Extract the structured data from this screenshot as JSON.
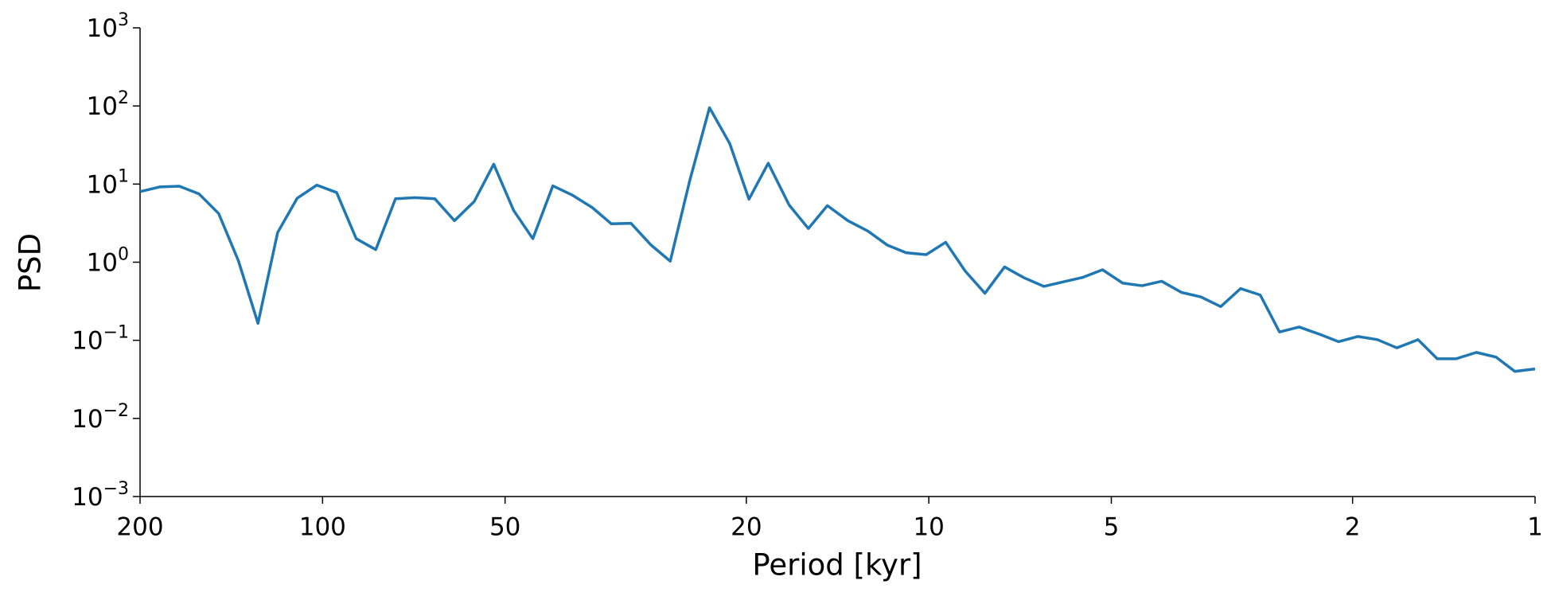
{
  "chart_data": {
    "type": "line",
    "xlabel": "Period [kyr]",
    "ylabel": "PSD",
    "xscale": "log",
    "yscale": "log",
    "xlim": [
      200,
      1
    ],
    "ylim": [
      0.001,
      1000
    ],
    "xticks": [
      200,
      100,
      50,
      20,
      10,
      5,
      2,
      1
    ],
    "yticks": [
      {
        "value": 0.001,
        "label": "10",
        "exponent": "−3"
      },
      {
        "value": 0.01,
        "label": "10",
        "exponent": "−2"
      },
      {
        "value": 0.1,
        "label": "10",
        "exponent": "−1"
      },
      {
        "value": 1,
        "label": "10",
        "exponent": "0"
      },
      {
        "value": 10,
        "label": "10",
        "exponent": "1"
      },
      {
        "value": 100,
        "label": "10",
        "exponent": "2"
      },
      {
        "value": 1000,
        "label": "10",
        "exponent": "3"
      }
    ],
    "x": [
      200,
      185.6,
      172.3,
      159.9,
      148.4,
      137.7,
      127.8,
      118.6,
      110.1,
      102.2,
      94.8,
      88.0,
      81.7,
      75.8,
      70.4,
      65.3,
      60.6,
      56.2,
      52.2,
      48.4,
      45.0,
      41.7,
      38.7,
      35.9,
      33.4,
      31.0,
      28.7,
      26.7,
      24.8,
      23.0,
      21.3,
      19.8,
      18.4,
      17.0,
      15.8,
      14.7,
      13.6,
      12.6,
      11.7,
      10.9,
      10.1,
      9.38,
      8.71,
      8.08,
      7.5,
      6.96,
      6.46,
      6.0,
      5.57,
      5.17,
      4.79,
      4.45,
      4.13,
      3.83,
      3.56,
      3.3,
      3.06,
      2.84,
      2.64,
      2.45,
      2.27,
      2.11,
      1.96,
      1.82,
      1.69,
      1.56,
      1.45,
      1.35,
      1.25,
      1.16,
      1.08,
      1
    ],
    "series": [
      {
        "color": "#1f77b4",
        "values": [
          8,
          9.2,
          9.4,
          7.5,
          4.2,
          1.05,
          0.165,
          2.4,
          6.6,
          9.7,
          7.8,
          2.0,
          1.45,
          6.5,
          6.7,
          6.5,
          3.4,
          6.0,
          18,
          4.6,
          2.0,
          9.5,
          7.2,
          5.0,
          3.1,
          3.15,
          1.65,
          1.03,
          11,
          95,
          33,
          6.4,
          18.5,
          5.4,
          2.7,
          5.3,
          3.4,
          2.5,
          1.65,
          1.32,
          1.25,
          1.8,
          0.77,
          0.4,
          0.87,
          0.63,
          0.49,
          0.56,
          0.64,
          0.8,
          0.54,
          0.5,
          0.57,
          0.41,
          0.36,
          0.27,
          0.46,
          0.38,
          0.128,
          0.148,
          0.12,
          0.096,
          0.112,
          0.102,
          0.08,
          0.102,
          0.058,
          0.058,
          0.07,
          0.061,
          0.04,
          0.043
        ]
      }
    ]
  }
}
